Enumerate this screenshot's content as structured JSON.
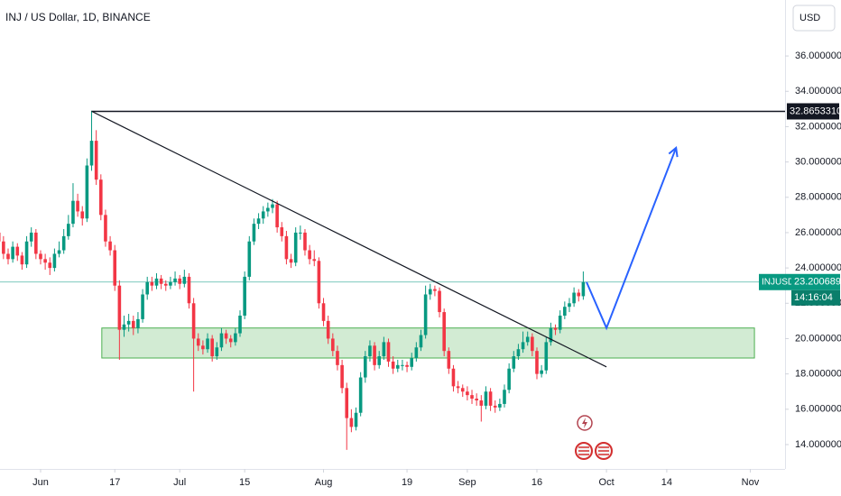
{
  "chart_data": {
    "type": "candlestick",
    "title": "INJ / US Dollar, 1D, BINANCE",
    "currency": "USD",
    "up_color": "#089981",
    "down_color": "#f23645",
    "x": [
      -9,
      -8,
      -7,
      -6,
      -5,
      -4,
      -3,
      -2,
      -1,
      0,
      1,
      2,
      3,
      4,
      5,
      6,
      7,
      8,
      9,
      10,
      11,
      12,
      13,
      14,
      15,
      16,
      17,
      18,
      19,
      20,
      21,
      22,
      23,
      24,
      25,
      26,
      27,
      28,
      29,
      30,
      31,
      32,
      33,
      34,
      35,
      36,
      37,
      38,
      39,
      40,
      41,
      42,
      43,
      44,
      45,
      46,
      47,
      48,
      49,
      50,
      51,
      52,
      53,
      54,
      55,
      56,
      57,
      58,
      59,
      60,
      61,
      62,
      63,
      64,
      65,
      66,
      67,
      68,
      69,
      70,
      71,
      72,
      73,
      74,
      75,
      76,
      77,
      78,
      79,
      80,
      81,
      82,
      83,
      84,
      85,
      86,
      87,
      88,
      89,
      90,
      91,
      92,
      93,
      94,
      95,
      96,
      97,
      98,
      99,
      100,
      101,
      102,
      103,
      104,
      105,
      106,
      107,
      108,
      109,
      110,
      111,
      112,
      113,
      114,
      115,
      116,
      117
    ],
    "ohlc": [
      [
        26.0,
        26.4,
        25.2,
        25.5
      ],
      [
        25.5,
        25.8,
        24.5,
        24.8
      ],
      [
        24.8,
        25.1,
        24.2,
        24.5
      ],
      [
        24.5,
        25.5,
        24.3,
        25.2
      ],
      [
        25.2,
        25.4,
        24.4,
        24.7
      ],
      [
        24.7,
        24.9,
        23.9,
        24.2
      ],
      [
        24.2,
        25.8,
        24.0,
        25.5
      ],
      [
        25.5,
        26.3,
        25.2,
        26.0
      ],
      [
        26.0,
        26.2,
        24.5,
        24.8
      ],
      [
        24.8,
        25.0,
        24.2,
        24.5
      ],
      [
        24.5,
        24.8,
        23.9,
        24.3
      ],
      [
        24.3,
        24.6,
        23.6,
        24.0
      ],
      [
        24.0,
        25.1,
        23.8,
        24.8
      ],
      [
        24.8,
        25.5,
        24.6,
        25.0
      ],
      [
        25.0,
        26.2,
        24.8,
        25.8
      ],
      [
        25.8,
        27.0,
        25.6,
        26.5
      ],
      [
        26.5,
        28.8,
        26.3,
        27.8
      ],
      [
        27.8,
        28.2,
        26.9,
        27.2
      ],
      [
        27.2,
        27.5,
        26.4,
        26.8
      ],
      [
        26.8,
        30.2,
        26.6,
        29.8
      ],
      [
        29.8,
        32.9,
        29.5,
        31.2
      ],
      [
        31.2,
        31.8,
        28.7,
        29.0
      ],
      [
        29.0,
        29.3,
        26.7,
        27.0
      ],
      [
        27.0,
        27.3,
        25.2,
        25.5
      ],
      [
        25.5,
        25.8,
        24.7,
        25.0
      ],
      [
        25.0,
        25.3,
        22.7,
        23.0
      ],
      [
        23.0,
        23.3,
        18.8,
        20.5
      ],
      [
        20.5,
        21.3,
        20.1,
        20.8
      ],
      [
        20.8,
        21.4,
        20.4,
        21.0
      ],
      [
        21.0,
        21.3,
        20.2,
        20.6
      ],
      [
        20.6,
        21.5,
        20.3,
        21.1
      ],
      [
        21.1,
        22.8,
        20.9,
        22.5
      ],
      [
        22.5,
        23.5,
        22.2,
        23.2
      ],
      [
        23.2,
        23.5,
        22.7,
        23.0
      ],
      [
        23.0,
        23.7,
        22.8,
        23.4
      ],
      [
        23.4,
        23.6,
        22.8,
        23.1
      ],
      [
        23.1,
        23.3,
        22.7,
        23.0
      ],
      [
        23.0,
        23.5,
        22.8,
        23.2
      ],
      [
        23.2,
        23.8,
        23.0,
        23.4
      ],
      [
        23.4,
        23.6,
        22.8,
        23.1
      ],
      [
        23.1,
        23.9,
        22.9,
        23.5
      ],
      [
        23.5,
        23.7,
        21.7,
        22.0
      ],
      [
        22.0,
        22.3,
        17.0,
        20.0
      ],
      [
        20.0,
        20.3,
        19.3,
        19.6
      ],
      [
        19.6,
        19.9,
        19.1,
        19.4
      ],
      [
        19.4,
        20.3,
        19.2,
        20.0
      ],
      [
        20.0,
        20.2,
        18.7,
        19.0
      ],
      [
        19.0,
        19.8,
        18.8,
        19.5
      ],
      [
        19.5,
        20.6,
        19.3,
        20.3
      ],
      [
        20.3,
        20.5,
        19.7,
        20.0
      ],
      [
        20.0,
        20.2,
        19.5,
        19.8
      ],
      [
        19.8,
        20.6,
        19.6,
        20.3
      ],
      [
        20.3,
        21.6,
        20.1,
        21.3
      ],
      [
        21.3,
        23.8,
        21.1,
        23.5
      ],
      [
        23.5,
        25.8,
        23.3,
        25.5
      ],
      [
        25.5,
        26.8,
        25.3,
        26.5
      ],
      [
        26.5,
        27.1,
        26.2,
        26.8
      ],
      [
        26.8,
        27.5,
        26.5,
        27.2
      ],
      [
        27.2,
        27.7,
        26.9,
        27.4
      ],
      [
        27.4,
        27.9,
        27.1,
        27.6
      ],
      [
        27.6,
        27.8,
        26.0,
        26.3
      ],
      [
        26.3,
        26.6,
        25.5,
        25.8
      ],
      [
        25.8,
        26.1,
        24.2,
        24.5
      ],
      [
        24.5,
        24.8,
        24.0,
        24.3
      ],
      [
        24.3,
        26.3,
        24.1,
        26.0
      ],
      [
        26.0,
        26.4,
        25.6,
        26.0
      ],
      [
        26.0,
        26.2,
        24.7,
        25.0
      ],
      [
        25.0,
        25.3,
        24.2,
        24.5
      ],
      [
        24.5,
        25.0,
        24.1,
        24.4
      ],
      [
        24.4,
        24.6,
        21.7,
        22.0
      ],
      [
        22.0,
        22.3,
        20.7,
        21.0
      ],
      [
        21.0,
        21.3,
        19.7,
        20.0
      ],
      [
        20.0,
        20.3,
        19.0,
        19.3
      ],
      [
        19.3,
        19.6,
        18.2,
        18.5
      ],
      [
        18.5,
        18.8,
        16.9,
        17.2
      ],
      [
        17.2,
        17.5,
        13.7,
        15.5
      ],
      [
        15.5,
        16.0,
        14.7,
        15.0
      ],
      [
        15.0,
        16.1,
        14.8,
        15.8
      ],
      [
        15.8,
        18.1,
        15.6,
        17.8
      ],
      [
        17.8,
        19.3,
        17.5,
        19.0
      ],
      [
        19.0,
        19.9,
        18.7,
        19.6
      ],
      [
        19.6,
        19.8,
        18.2,
        18.5
      ],
      [
        18.5,
        19.3,
        18.3,
        19.0
      ],
      [
        19.0,
        20.1,
        18.8,
        19.8
      ],
      [
        19.8,
        20.0,
        18.4,
        18.7
      ],
      [
        18.7,
        19.0,
        18.0,
        18.3
      ],
      [
        18.3,
        18.8,
        18.1,
        18.5
      ],
      [
        18.5,
        18.8,
        18.2,
        18.5
      ],
      [
        18.5,
        18.7,
        18.1,
        18.4
      ],
      [
        18.4,
        19.2,
        18.2,
        18.9
      ],
      [
        18.9,
        19.8,
        18.7,
        19.5
      ],
      [
        19.5,
        20.5,
        19.3,
        20.2
      ],
      [
        20.2,
        23.0,
        20.0,
        22.5
      ],
      [
        22.5,
        23.1,
        22.2,
        22.8
      ],
      [
        22.8,
        23.0,
        22.4,
        22.7
      ],
      [
        22.7,
        22.9,
        21.2,
        21.5
      ],
      [
        21.5,
        21.7,
        19.0,
        19.3
      ],
      [
        19.3,
        19.5,
        18.0,
        18.3
      ],
      [
        18.3,
        18.5,
        17.0,
        17.3
      ],
      [
        17.3,
        17.6,
        16.9,
        17.2
      ],
      [
        17.2,
        17.4,
        16.7,
        17.0
      ],
      [
        17.0,
        17.3,
        16.5,
        16.8
      ],
      [
        16.8,
        17.1,
        16.3,
        16.6
      ],
      [
        16.6,
        16.9,
        16.2,
        16.5
      ],
      [
        16.5,
        16.8,
        15.3,
        16.2
      ],
      [
        16.2,
        17.3,
        16.0,
        17.0
      ],
      [
        17.0,
        17.2,
        15.9,
        16.2
      ],
      [
        16.2,
        16.5,
        15.8,
        16.1
      ],
      [
        16.1,
        16.6,
        15.9,
        16.3
      ],
      [
        16.3,
        17.4,
        16.1,
        17.1
      ],
      [
        17.1,
        18.6,
        16.9,
        18.3
      ],
      [
        18.3,
        19.3,
        18.1,
        19.0
      ],
      [
        19.0,
        19.7,
        18.8,
        19.4
      ],
      [
        19.4,
        20.4,
        19.2,
        19.8
      ],
      [
        19.8,
        20.4,
        19.6,
        20.1
      ],
      [
        20.1,
        20.3,
        19.0,
        19.3
      ],
      [
        19.3,
        19.5,
        17.7,
        18.0
      ],
      [
        18.0,
        18.5,
        17.8,
        18.2
      ],
      [
        18.2,
        20.1,
        18.0,
        19.8
      ],
      [
        19.8,
        20.9,
        19.6,
        20.6
      ],
      [
        20.6,
        20.8,
        20.2,
        20.5
      ],
      [
        20.5,
        21.6,
        20.3,
        21.3
      ],
      [
        21.3,
        22.1,
        21.1,
        21.8
      ],
      [
        21.8,
        22.3,
        21.5,
        22.0
      ],
      [
        22.0,
        22.9,
        21.8,
        22.6
      ],
      [
        22.6,
        22.8,
        22.1,
        22.4
      ],
      [
        22.4,
        23.8,
        22.2,
        23.2
      ]
    ],
    "xlim": [
      -8.75,
      160.5
    ],
    "ylim": [
      12.62,
      39.17
    ],
    "xticks": [
      {
        "value": 0,
        "label": "Jun"
      },
      {
        "value": 16,
        "label": "17"
      },
      {
        "value": 30,
        "label": "Jul"
      },
      {
        "value": 44,
        "label": "15"
      },
      {
        "value": 61,
        "label": "Aug"
      },
      {
        "value": 79,
        "label": "19"
      },
      {
        "value": 92,
        "label": "Sep"
      },
      {
        "value": 107,
        "label": "16"
      },
      {
        "value": 122,
        "label": "Oct"
      },
      {
        "value": 135,
        "label": "14"
      },
      {
        "value": 153,
        "label": "Nov"
      }
    ],
    "yticks": [
      {
        "value": 14,
        "label": "14.0000000"
      },
      {
        "value": 16,
        "label": "16.0000000"
      },
      {
        "value": 18,
        "label": "18.0000000"
      },
      {
        "value": 20,
        "label": "20.0000000"
      },
      {
        "value": 22,
        "label": "22.0000000"
      },
      {
        "value": 24,
        "label": "24.0000000"
      },
      {
        "value": 26,
        "label": "26.0000000"
      },
      {
        "value": 28,
        "label": "28.0000000"
      },
      {
        "value": 30,
        "label": "30.0000000"
      },
      {
        "value": 32,
        "label": "32.0000000"
      },
      {
        "value": 34,
        "label": "34.0000000"
      },
      {
        "value": 36,
        "label": "36.0000000"
      }
    ],
    "last_price": {
      "symbol": "INJUSD",
      "value": 23.2006892,
      "countdown": "14:16:04",
      "color": "#089981"
    },
    "level": {
      "value": 32.865331,
      "label": "32.8653310",
      "x": 11,
      "color": "#131722"
    },
    "trendline": {
      "x": [
        11,
        122
      ],
      "y": [
        32.87,
        18.4
      ],
      "color": "#131722"
    },
    "zone": {
      "x": [
        13.2,
        153.9
      ],
      "y": [
        18.9,
        20.6
      ],
      "color": "#4caf50"
    },
    "projection": {
      "x": [
        117.7,
        122,
        137
      ],
      "y": [
        23.2,
        20.6,
        30.8
      ],
      "color": "#2962ff"
    }
  }
}
